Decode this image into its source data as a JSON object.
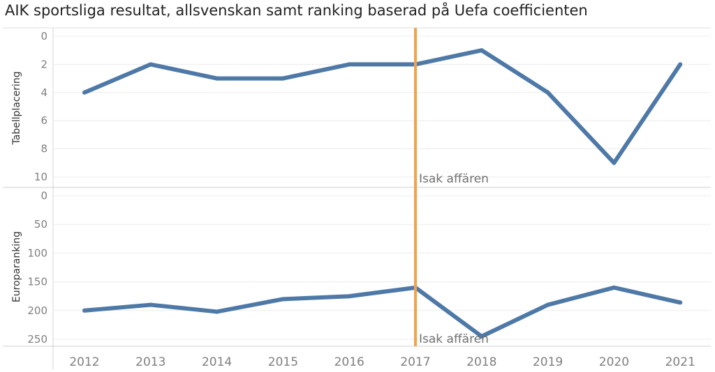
{
  "chart_data": [
    {
      "type": "line",
      "title": "AIK sportsliga resultat, allsvenskan samt ranking baserad på Uefa coefficienten",
      "ylabel": "Tabellplacering",
      "xlabel": "",
      "x": [
        "2012",
        "2013",
        "2014",
        "2015",
        "2016",
        "2017",
        "2018",
        "2019",
        "2020",
        "2021"
      ],
      "values": [
        4,
        2,
        3,
        3,
        2,
        2,
        1,
        4,
        9,
        2
      ],
      "ylim": [
        0,
        10
      ],
      "y_reversed": true,
      "yticks": [
        "0",
        "2",
        "4",
        "6",
        "8",
        "10"
      ],
      "annotation": {
        "x": "2017",
        "label": "Isak affären"
      }
    },
    {
      "type": "line",
      "ylabel": "Europaranking",
      "xlabel": "",
      "x": [
        "2012",
        "2013",
        "2014",
        "2015",
        "2016",
        "2017",
        "2018",
        "2019",
        "2020",
        "2021"
      ],
      "values": [
        200,
        190,
        202,
        180,
        175,
        160,
        245,
        190,
        160,
        186
      ],
      "ylim": [
        0,
        250
      ],
      "y_reversed": true,
      "yticks": [
        "0",
        "50",
        "100",
        "150",
        "200",
        "250"
      ],
      "annotation": {
        "x": "2017",
        "label": "Isak affären"
      }
    }
  ],
  "colors": {
    "line": "#4e79a7",
    "reference_line": "#f0a34a",
    "grid": "#ececec",
    "divider": "#cfcfcf"
  }
}
